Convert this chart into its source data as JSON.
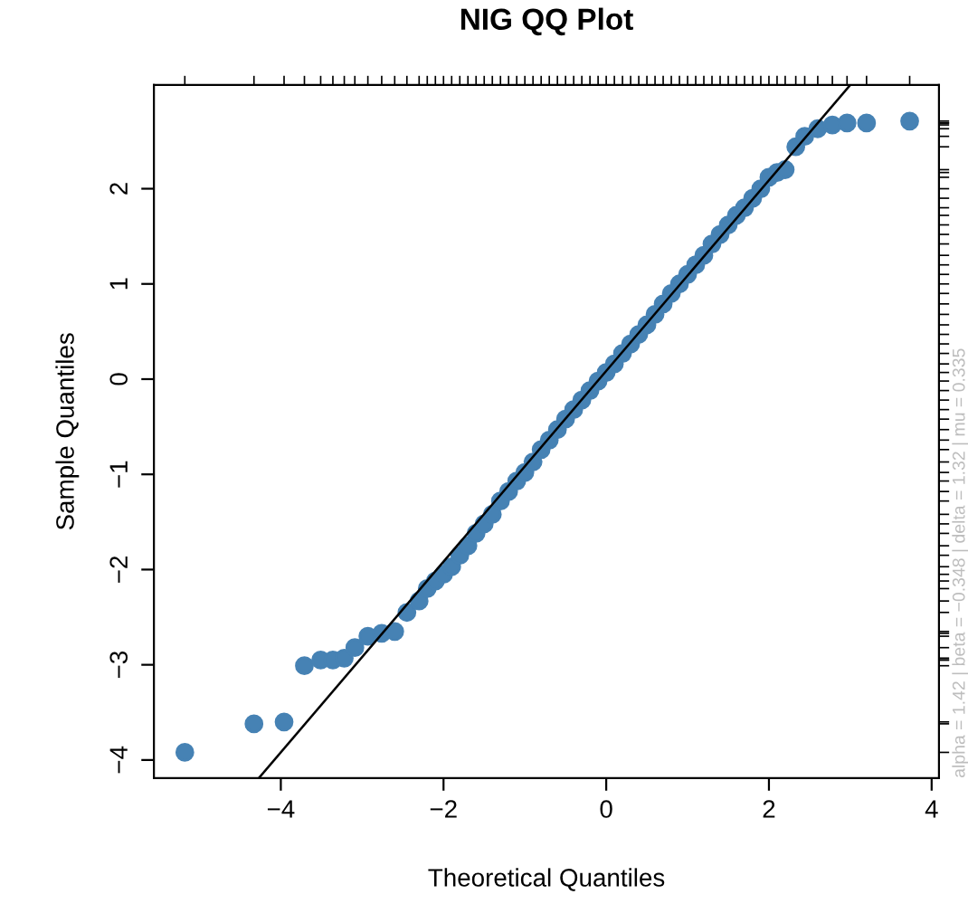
{
  "chart_data": {
    "type": "scatter",
    "title": "NIG QQ Plot",
    "xlabel": "Theoretical Quantiles",
    "ylabel": "Sample Quantiles",
    "annotations": [
      "alpha = 1.42 | beta = −0.348 | delta = 1.32 | mu = 0.335"
    ],
    "xlim": [
      -5.56,
      4.09
    ],
    "ylim": [
      -4.19,
      3.09
    ],
    "xticks": [
      {
        "value": -4,
        "label": "−4"
      },
      {
        "value": -2,
        "label": "−2"
      },
      0,
      2,
      4
    ],
    "yticks": [
      {
        "value": -4,
        "label": "−4"
      },
      {
        "value": -3,
        "label": "−3"
      },
      {
        "value": -2,
        "label": "−2"
      },
      {
        "value": -1,
        "label": "−1"
      },
      0,
      1,
      2
    ],
    "grid": false,
    "legend": false,
    "marker": "circle",
    "series": [
      {
        "color": "#4682b4",
        "x": [
          -5.18,
          -4.33,
          -3.96,
          -3.71,
          -3.51,
          -3.36,
          -3.22,
          -3.09,
          -2.93,
          -2.76,
          -2.6,
          -2.45,
          -2.3,
          -2.2,
          -2.1,
          -2.0,
          -1.9,
          -1.8,
          -1.7,
          -1.6,
          -1.5,
          -1.4,
          -1.3,
          -1.2,
          -1.1,
          -1.0,
          -0.9,
          -0.8,
          -0.7,
          -0.6,
          -0.5,
          -0.4,
          -0.3,
          -0.2,
          -0.1,
          0,
          0.1,
          0.2,
          0.3,
          0.4,
          0.5,
          0.6,
          0.7,
          0.8,
          0.9,
          1.0,
          1.1,
          1.2,
          1.3,
          1.4,
          1.5,
          1.6,
          1.7,
          1.8,
          1.9,
          2.0,
          2.1,
          2.2,
          2.33,
          2.44,
          2.6,
          2.78,
          2.96,
          3.2,
          3.73
        ],
        "values": [
          -3.92,
          -3.62,
          -3.6,
          -3.01,
          -2.95,
          -2.95,
          -2.93,
          -2.82,
          -2.7,
          -2.67,
          -2.65,
          -2.45,
          -2.33,
          -2.2,
          -2.12,
          -2.05,
          -1.97,
          -1.85,
          -1.75,
          -1.62,
          -1.52,
          -1.42,
          -1.28,
          -1.18,
          -1.07,
          -0.98,
          -0.87,
          -0.74,
          -0.64,
          -0.53,
          -0.42,
          -0.32,
          -0.22,
          -0.12,
          -0.02,
          0.07,
          0.16,
          0.27,
          0.37,
          0.47,
          0.57,
          0.68,
          0.79,
          0.9,
          1.0,
          1.1,
          1.2,
          1.3,
          1.42,
          1.52,
          1.62,
          1.72,
          1.8,
          1.9,
          2.0,
          2.12,
          2.17,
          2.2,
          2.44,
          2.55,
          2.63,
          2.67,
          2.69,
          2.69,
          2.71
        ]
      },
      {
        "type": "line",
        "color": "#000000",
        "marker": "none",
        "x": [
          -4.27,
          3.0
        ],
        "values": [
          -4.19,
          3.09
        ]
      }
    ]
  }
}
